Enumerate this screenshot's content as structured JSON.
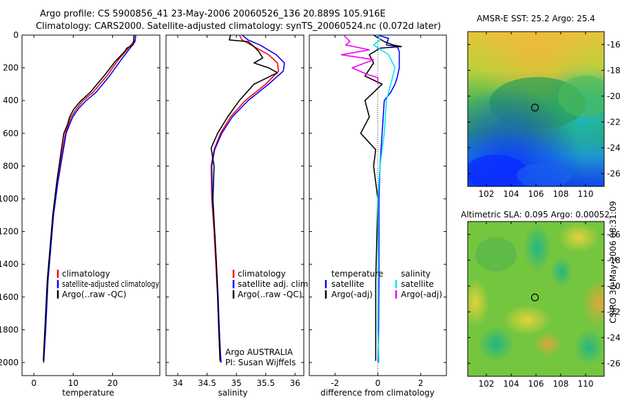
{
  "title": {
    "line1": "Argo profile: CS 5900856_41 23-May-2006 20060526_136 20.889S 105.916E",
    "line2": "Climatology: CARS2000. Satellite-adjusted climatology: synTS_20060524.nc (0.072d later)"
  },
  "colors": {
    "climatology": "#ff0000",
    "satellite": "#0000ff",
    "argo": "#000000",
    "salinity_satellite": "#00e5ee",
    "salinity_argo": "#ee00ee"
  },
  "chart_data": [
    {
      "id": "temperature",
      "type": "line",
      "xlabel": "temperature",
      "ylabel": "",
      "xlim": [
        -3,
        32
      ],
      "ylim": [
        2080,
        0
      ],
      "xticks": [
        0,
        10,
        20
      ],
      "yticks": [
        0,
        200,
        400,
        600,
        800,
        1000,
        1200,
        1400,
        1600,
        1800,
        2000
      ],
      "legend": [
        "climatology",
        "satellite-adjusted climatology",
        "Argo(..raw -QC)"
      ],
      "series": [
        {
          "name": "climatology",
          "color": "#ff0000",
          "x": [
            25.5,
            25.3,
            24.2,
            21.5,
            18.5,
            15.0,
            12.5,
            10.8,
            9.5,
            8.7,
            8.0,
            7.3,
            5.9,
            4.9,
            4.2,
            3.5,
            2.9,
            2.5
          ],
          "y": [
            0,
            40,
            75,
            150,
            250,
            350,
            400,
            450,
            500,
            550,
            600,
            700,
            900,
            1100,
            1300,
            1500,
            1800,
            2000
          ]
        },
        {
          "name": "satellite",
          "color": "#0000ff",
          "x": [
            25.9,
            25.7,
            24.6,
            22.2,
            19.2,
            15.8,
            13.3,
            11.3,
            9.9,
            9.0,
            8.2,
            7.5,
            6.1,
            5.0,
            4.3,
            3.6,
            3.0,
            2.5
          ],
          "y": [
            0,
            40,
            75,
            150,
            250,
            350,
            400,
            450,
            500,
            550,
            600,
            700,
            900,
            1100,
            1300,
            1500,
            1800,
            2000
          ]
        },
        {
          "name": "argo",
          "color": "#000000",
          "x": [
            25.4,
            25.4,
            25.2,
            23.6,
            23.1,
            20.7,
            17.8,
            14.3,
            12.0,
            10.2,
            9.1,
            8.5,
            7.6,
            7.0,
            5.8,
            4.8,
            4.1,
            3.4,
            2.8,
            2.4
          ],
          "y": [
            0,
            40,
            60,
            80,
            100,
            160,
            250,
            350,
            400,
            450,
            500,
            550,
            600,
            700,
            900,
            1100,
            1300,
            1500,
            1800,
            1990
          ]
        }
      ],
      "annotations": []
    },
    {
      "id": "salinity",
      "type": "line",
      "xlabel": "salinity",
      "ylabel": "",
      "xlim": [
        33.8,
        36.15
      ],
      "ylim": [
        2080,
        0
      ],
      "xticks": [
        34,
        34.5,
        35,
        35.5,
        36
      ],
      "xticklabels": [
        "34",
        "34.5",
        "35",
        "35.5",
        "36"
      ],
      "legend": [
        "climatology",
        "satellite adj. clim.",
        "Argo(..raw -QC)"
      ],
      "series": [
        {
          "name": "climatology",
          "color": "#ff0000",
          "x": [
            35.05,
            35.1,
            35.25,
            35.55,
            35.7,
            35.72,
            35.5,
            35.15,
            34.9,
            34.73,
            34.62,
            34.57,
            34.58,
            34.62,
            34.65,
            34.68,
            34.7,
            34.72,
            34.73
          ],
          "y": [
            0,
            30,
            60,
            120,
            170,
            220,
            300,
            400,
            500,
            600,
            700,
            800,
            1000,
            1200,
            1400,
            1600,
            1800,
            1950,
            2000
          ]
        },
        {
          "name": "satellite",
          "color": "#0000ff",
          "x": [
            35.1,
            35.2,
            35.4,
            35.68,
            35.82,
            35.8,
            35.55,
            35.2,
            34.93,
            34.75,
            34.63,
            34.58,
            34.59,
            34.63,
            34.66,
            34.69,
            34.71,
            34.73,
            34.74
          ],
          "y": [
            0,
            30,
            60,
            120,
            170,
            220,
            300,
            400,
            500,
            600,
            700,
            800,
            1000,
            1200,
            1400,
            1600,
            1800,
            1950,
            2000
          ]
        },
        {
          "name": "argo",
          "color": "#000000",
          "x": [
            34.9,
            34.88,
            35.2,
            35.3,
            35.38,
            35.45,
            35.3,
            35.55,
            35.7,
            35.3,
            35.05,
            34.85,
            34.68,
            34.57,
            34.62,
            34.6,
            34.63,
            34.66,
            34.68,
            34.7,
            34.72
          ],
          "y": [
            0,
            30,
            40,
            70,
            100,
            140,
            170,
            200,
            230,
            300,
            400,
            500,
            600,
            690,
            800,
            1000,
            1200,
            1400,
            1600,
            1800,
            1990
          ]
        }
      ],
      "annotations": [
        "Argo AUSTRALIA",
        "PI: Susan Wijffels"
      ]
    },
    {
      "id": "difference",
      "type": "line",
      "xlabel": "difference from climatology",
      "ylabel": "",
      "xlim": [
        -3.2,
        3.2
      ],
      "ylim": [
        2080,
        0
      ],
      "xticks": [
        -2,
        0,
        2
      ],
      "xticklabels": [
        "-2",
        "0",
        "2"
      ],
      "legend_left_title": "temperature",
      "legend_right_title": "salinity",
      "legend": [
        "satellite",
        "Argo(-adj)",
        "satellite",
        "Argo(-adj)"
      ],
      "series": [
        {
          "name": "temperature satellite",
          "color": "#0000ff",
          "x": [
            0.0,
            0.5,
            0.4,
            0.9,
            1.0,
            1.0,
            0.9,
            0.8,
            0.6,
            0.3,
            0.2,
            0.1,
            0.05,
            0.05,
            0.02
          ],
          "y": [
            0,
            20,
            60,
            70,
            100,
            200,
            260,
            300,
            350,
            400,
            600,
            800,
            1000,
            1500,
            2000
          ]
        },
        {
          "name": "temperature argo",
          "color": "#000000",
          "x": [
            -0.2,
            0.3,
            0.7,
            1.1,
            0.1,
            -0.4,
            -0.2,
            -0.6,
            0.2,
            -0.6,
            -0.4,
            -0.8,
            -0.1,
            -0.2,
            0.0,
            -0.1,
            -0.1
          ],
          "y": [
            0,
            40,
            60,
            70,
            80,
            120,
            170,
            250,
            300,
            400,
            500,
            600,
            700,
            800,
            1000,
            1500,
            1990
          ]
        },
        {
          "name": "salinity satellite",
          "color": "#00e5ee",
          "x": [
            0.0,
            0.1,
            -0.2,
            0.5,
            0.8,
            0.6,
            0.4,
            0.3,
            0.1,
            0.0,
            0.02,
            0.0,
            0.05
          ],
          "y": [
            0,
            30,
            60,
            120,
            200,
            300,
            400,
            600,
            800,
            1000,
            1400,
            1800,
            2000
          ]
        },
        {
          "name": "salinity argo",
          "color": "#ee00ee",
          "x": [
            -1.6,
            -1.3,
            -1.5,
            -0.4,
            -1.7,
            -0.2,
            -1.2,
            -0.5,
            0.0,
            0.0
          ],
          "y": [
            0,
            40,
            60,
            90,
            120,
            150,
            200,
            240,
            260,
            300
          ]
        }
      ],
      "annotations": []
    },
    {
      "id": "sst_map",
      "type": "heatmap",
      "title": "AMSR-E SST: 25.2  Argo: 25.4",
      "xlim": [
        100.5,
        111.5
      ],
      "ylim": [
        -27,
        -15
      ],
      "xticks": [
        102,
        104,
        106,
        108,
        110
      ],
      "yticks": [
        -16,
        -18,
        -20,
        -22,
        -24,
        -26
      ],
      "marker": {
        "lon": 105.916,
        "lat": -20.889
      }
    },
    {
      "id": "sla_map",
      "type": "heatmap",
      "title": "Altimetric SLA: 0.095  Argo: 0.00052",
      "xlim": [
        100.5,
        111.5
      ],
      "ylim": [
        -27,
        -15
      ],
      "xticks": [
        102,
        104,
        106,
        108,
        110
      ],
      "yticks": [
        -16,
        -18,
        -20,
        -22,
        -24,
        -26
      ],
      "marker": {
        "lon": 105.916,
        "lat": -20.889
      }
    }
  ],
  "side_label": "CSIRO 30-May-2006 08:31:09"
}
